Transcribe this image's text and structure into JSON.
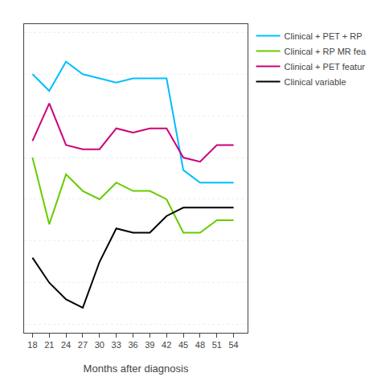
{
  "chart_data": {
    "type": "line",
    "x": [
      18,
      21,
      24,
      27,
      30,
      33,
      36,
      39,
      42,
      45,
      48,
      51,
      54
    ],
    "series": [
      {
        "name": "Clinical + PET + RP",
        "color": "#00bfff",
        "values": [
          0.8,
          0.76,
          0.83,
          0.8,
          0.79,
          0.78,
          0.79,
          0.79,
          0.79,
          0.57,
          0.54,
          0.54,
          0.54
        ]
      },
      {
        "name": "Clinical + RP MR fea",
        "color": "#66cc00",
        "values": [
          0.6,
          0.44,
          0.56,
          0.52,
          0.5,
          0.54,
          0.52,
          0.52,
          0.5,
          0.42,
          0.42,
          0.45,
          0.45
        ]
      },
      {
        "name": "Clinical + PET featur",
        "color": "#cc007a",
        "values": [
          0.64,
          0.73,
          0.63,
          0.62,
          0.62,
          0.67,
          0.66,
          0.67,
          0.67,
          0.6,
          0.59,
          0.63,
          0.63
        ]
      },
      {
        "name": "Clinical variable",
        "color": "#000000",
        "values": [
          0.36,
          0.3,
          0.26,
          0.24,
          0.35,
          0.43,
          0.42,
          0.42,
          0.46,
          0.48,
          0.48,
          0.48,
          0.48
        ]
      }
    ],
    "x_label": "Months after diagnosis",
    "xlim": [
      16.5,
      56.5
    ],
    "xticks": [
      18,
      21,
      24,
      27,
      30,
      33,
      36,
      39,
      42,
      45,
      48,
      51,
      54
    ],
    "ylim": [
      0.18,
      0.92
    ],
    "yticks": [
      0.2,
      0.3,
      0.4,
      0.5,
      0.6,
      0.7,
      0.8,
      0.9
    ],
    "grid": true,
    "tick_labels": "x",
    "legend": "right"
  }
}
